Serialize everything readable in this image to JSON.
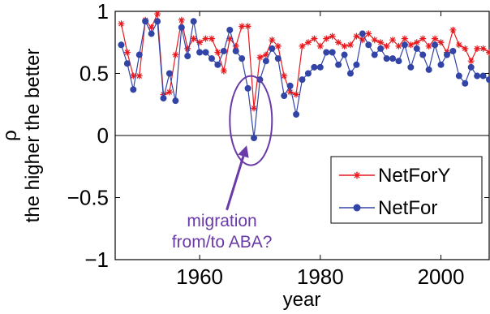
{
  "chart_data": {
    "type": "line",
    "title": "",
    "xlabel": "year",
    "ylabel_symbol": "ρ",
    "ylabel": "the higher the better",
    "xlim": [
      1946,
      2008
    ],
    "ylim": [
      -1,
      1
    ],
    "xticks": [
      1960,
      1980,
      2000
    ],
    "yticks": [
      -1,
      -0.5,
      0,
      0.5,
      1
    ],
    "xtick_labels": [
      "1960",
      "1980",
      "2000"
    ],
    "ytick_labels": [
      "−1",
      "−0.5",
      "0",
      "0.5",
      "1"
    ],
    "reference_line_y": 0,
    "grid": false,
    "legend_position": "lower-right",
    "series": [
      {
        "name": "NetForY",
        "color": "#e8191e",
        "marker": "star",
        "x": [
          1947,
          1948,
          1949,
          1950,
          1951,
          1952,
          1953,
          1954,
          1955,
          1956,
          1957,
          1958,
          1959,
          1960,
          1961,
          1962,
          1963,
          1964,
          1965,
          1966,
          1967,
          1968,
          1969,
          1970,
          1971,
          1972,
          1973,
          1974,
          1975,
          1976,
          1977,
          1978,
          1979,
          1980,
          1981,
          1982,
          1983,
          1984,
          1985,
          1986,
          1987,
          1988,
          1989,
          1990,
          1991,
          1992,
          1993,
          1994,
          1995,
          1996,
          1997,
          1998,
          1999,
          2000,
          2001,
          2002,
          2003,
          2004,
          2005,
          2006,
          2007,
          2008
        ],
        "values": [
          0.9,
          0.67,
          0.48,
          0.48,
          0.93,
          0.87,
          0.98,
          0.33,
          0.35,
          0.65,
          0.93,
          0.7,
          0.78,
          0.75,
          0.78,
          0.78,
          0.67,
          0.52,
          0.78,
          0.72,
          0.88,
          0.88,
          0.22,
          0.63,
          0.65,
          0.77,
          0.72,
          0.48,
          0.35,
          0.33,
          0.72,
          0.75,
          0.78,
          0.72,
          0.78,
          0.8,
          0.75,
          0.72,
          0.73,
          0.8,
          0.77,
          0.82,
          0.77,
          0.75,
          0.72,
          0.77,
          0.72,
          0.78,
          0.73,
          0.75,
          0.78,
          0.72,
          0.78,
          0.75,
          0.67,
          0.85,
          0.73,
          0.7,
          0.6,
          0.7,
          0.7,
          0.67
        ]
      },
      {
        "name": "NetFor",
        "color": "#3245a6",
        "marker": "circle",
        "x": [
          1947,
          1948,
          1949,
          1950,
          1951,
          1952,
          1953,
          1954,
          1955,
          1956,
          1957,
          1958,
          1959,
          1960,
          1961,
          1962,
          1963,
          1964,
          1965,
          1966,
          1967,
          1968,
          1969,
          1970,
          1971,
          1972,
          1973,
          1974,
          1975,
          1976,
          1977,
          1978,
          1979,
          1980,
          1981,
          1982,
          1983,
          1984,
          1985,
          1986,
          1987,
          1988,
          1989,
          1990,
          1991,
          1992,
          1993,
          1994,
          1995,
          1996,
          1997,
          1998,
          1999,
          2000,
          2001,
          2002,
          2003,
          2004,
          2005,
          2006,
          2007,
          2008
        ],
        "values": [
          0.73,
          0.58,
          0.37,
          0.65,
          0.92,
          0.82,
          0.92,
          0.3,
          0.5,
          0.28,
          0.87,
          0.64,
          0.92,
          0.67,
          0.67,
          0.62,
          0.57,
          0.68,
          0.85,
          0.68,
          0.62,
          0.38,
          -0.02,
          0.45,
          0.6,
          0.7,
          0.62,
          0.32,
          0.4,
          0.17,
          0.45,
          0.5,
          0.55,
          0.55,
          0.67,
          0.67,
          0.57,
          0.65,
          0.5,
          0.57,
          0.82,
          0.73,
          0.65,
          0.7,
          0.62,
          0.62,
          0.6,
          0.73,
          0.55,
          0.7,
          0.65,
          0.53,
          0.73,
          0.57,
          0.65,
          0.68,
          0.48,
          0.42,
          0.55,
          0.48,
          0.48,
          0.45
        ]
      }
    ],
    "annotation": {
      "lines": [
        "migration",
        "from/to ABA?"
      ],
      "circle_center": [
        1968.5,
        0.12
      ],
      "arrow_from": [
        1964.5,
        -0.6
      ],
      "arrow_to": [
        1967.8,
        -0.08
      ]
    }
  }
}
